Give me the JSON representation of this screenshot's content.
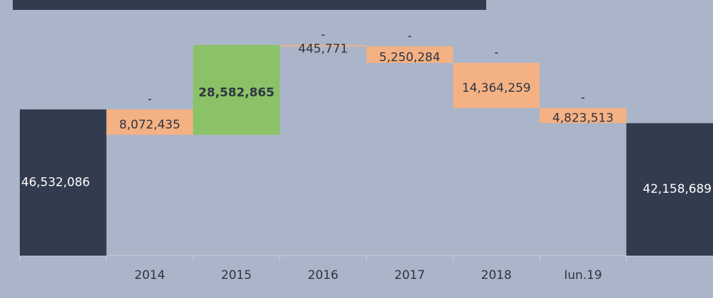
{
  "chart_data": {
    "type": "waterfall",
    "categories": [
      null,
      "2014",
      "2015",
      "2016",
      "2017",
      "2018",
      "Iun.19",
      null
    ],
    "values": [
      46532086,
      -8072435,
      28582865,
      -445771,
      -5250284,
      -14364259,
      -4823513,
      42158689
    ],
    "value_labels": [
      "46,532,086",
      "8,072,435",
      "28,582,865",
      "445,771",
      "5,250,284",
      "14,364,259",
      "4,823,513",
      "42,158,689"
    ],
    "colors": {
      "total": "#323c4e",
      "increase": "#8cc267",
      "decrease": "#f4b183"
    },
    "ylim": [
      0,
      80000000
    ]
  }
}
